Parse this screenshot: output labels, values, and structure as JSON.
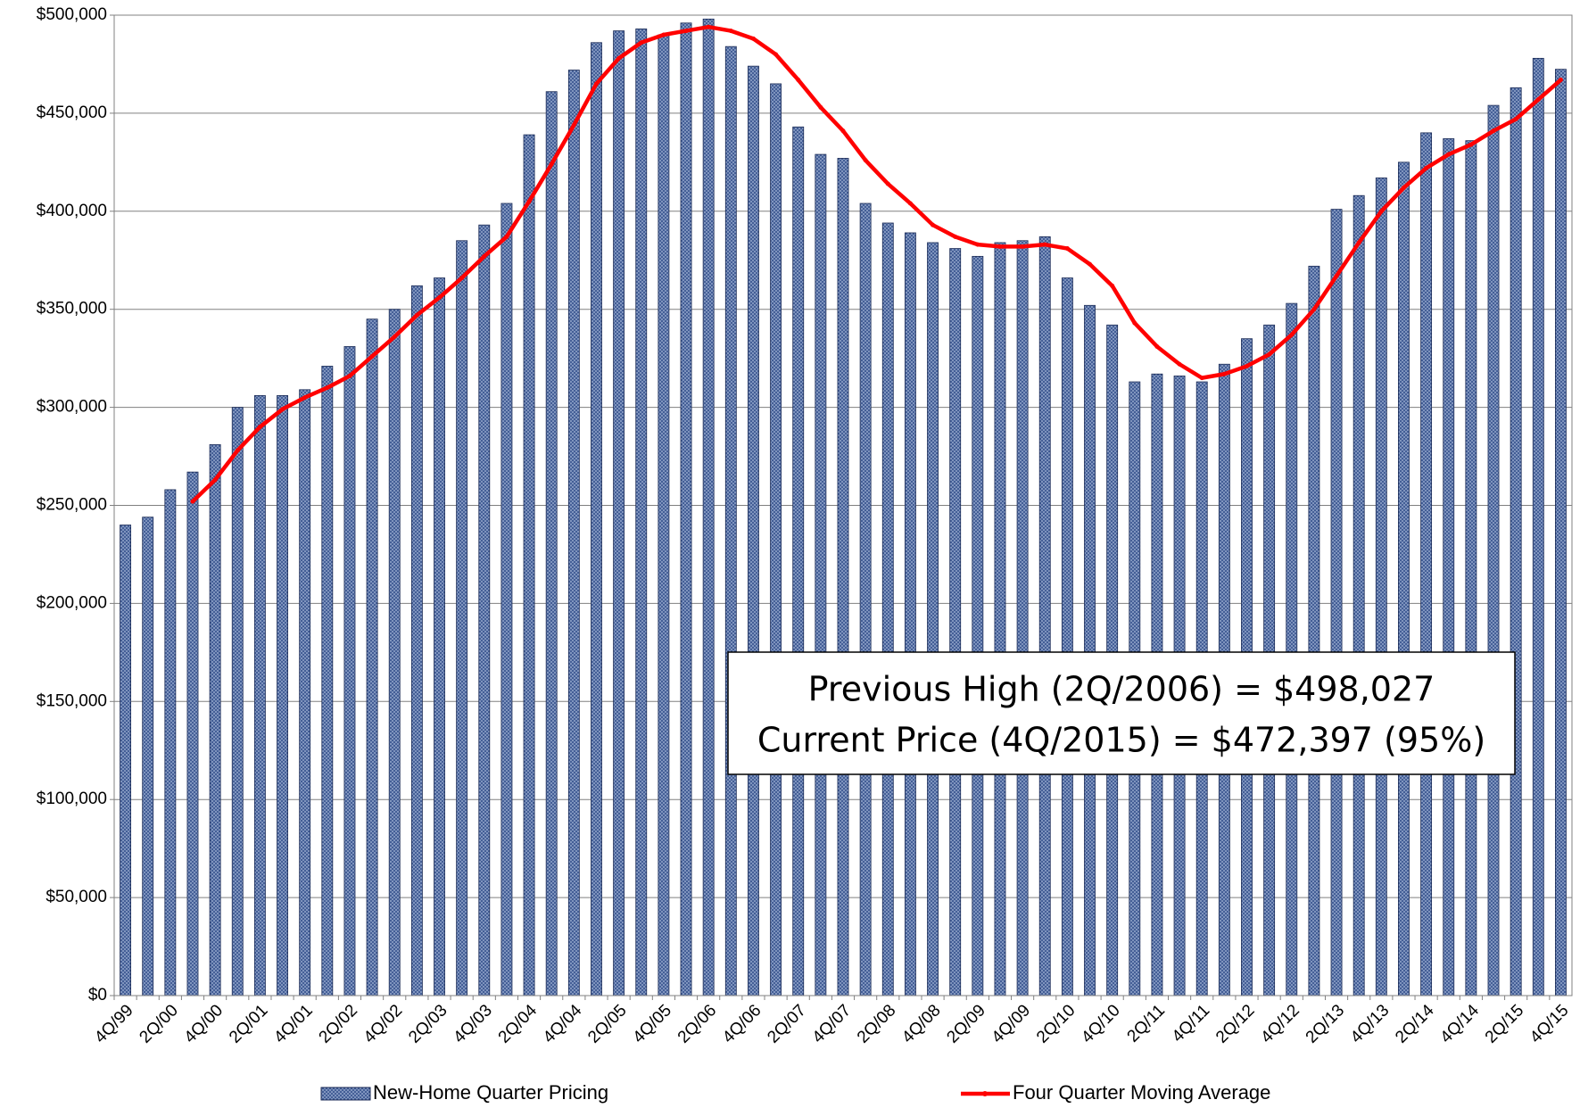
{
  "chart_data": {
    "type": "bar-line",
    "categories": [
      "4Q/99",
      null,
      "2Q/00",
      null,
      "4Q/00",
      null,
      "2Q/01",
      null,
      "4Q/01",
      null,
      "2Q/02",
      null,
      "4Q/02",
      null,
      "2Q/03",
      null,
      "4Q/03",
      null,
      "2Q/04",
      null,
      "4Q/04",
      null,
      "2Q/05",
      null,
      "4Q/05",
      null,
      "2Q/06",
      null,
      "4Q/06",
      null,
      "2Q/07",
      null,
      "4Q/07",
      null,
      "2Q/08",
      null,
      "4Q/08",
      null,
      "2Q/09",
      null,
      "4Q/09",
      null,
      "2Q/10",
      null,
      "4Q/10",
      null,
      "2Q/11",
      null,
      "4Q/11",
      null,
      "2Q/12",
      null,
      "4Q/12",
      null,
      "2Q/13",
      null,
      "4Q/13",
      null,
      "2Q/14",
      null,
      "4Q/14",
      null,
      "2Q/15",
      null,
      "4Q/15"
    ],
    "series": [
      {
        "name": "New-Home Quarter Pricing",
        "type": "bar",
        "color": "#34508c",
        "values": [
          240000,
          244000,
          258000,
          267000,
          281000,
          300000,
          306000,
          306000,
          309000,
          321000,
          331000,
          345000,
          350000,
          362000,
          366000,
          385000,
          393000,
          404000,
          439000,
          461000,
          472000,
          486000,
          492000,
          493000,
          490000,
          496000,
          498027,
          484000,
          474000,
          465000,
          443000,
          429000,
          427000,
          404000,
          394000,
          389000,
          384000,
          381000,
          377000,
          384000,
          385000,
          387000,
          366000,
          352000,
          342000,
          313000,
          317000,
          316000,
          313000,
          322000,
          335000,
          342000,
          353000,
          372000,
          401000,
          408000,
          417000,
          425000,
          440000,
          437000,
          436000,
          454000,
          463000,
          478000,
          472397
        ]
      },
      {
        "name": "Four Quarter Moving Average",
        "type": "line",
        "color": "#ff0000",
        "values": [
          null,
          null,
          null,
          252000,
          263000,
          278000,
          290000,
          299000,
          305000,
          310000,
          316000,
          326000,
          336000,
          347000,
          356000,
          366000,
          377000,
          387000,
          405000,
          424000,
          444000,
          465000,
          478000,
          486000,
          490000,
          492000,
          494000,
          492000,
          488000,
          480000,
          467000,
          453000,
          441000,
          426000,
          414000,
          404000,
          393000,
          387000,
          383000,
          382000,
          382000,
          383000,
          381000,
          373000,
          362000,
          343000,
          331000,
          322000,
          315000,
          317000,
          321000,
          327000,
          337000,
          350000,
          367000,
          384000,
          400000,
          412000,
          422000,
          429000,
          434000,
          441000,
          447000,
          457000,
          467000
        ]
      }
    ],
    "ylim": [
      0,
      500000
    ],
    "yticks": [
      {
        "value": 0,
        "label": "$0"
      },
      {
        "value": 50000,
        "label": "$50,000"
      },
      {
        "value": 100000,
        "label": "$100,000"
      },
      {
        "value": 150000,
        "label": "$150,000"
      },
      {
        "value": 200000,
        "label": "$200,000"
      },
      {
        "value": 250000,
        "label": "$250,000"
      },
      {
        "value": 300000,
        "label": "$300,000"
      },
      {
        "value": 350000,
        "label": "$350,000"
      },
      {
        "value": 400000,
        "label": "$400,000"
      },
      {
        "value": 450000,
        "label": "$450,000"
      },
      {
        "value": 500000,
        "label": "$500,000"
      }
    ],
    "grid": true,
    "legend": "bottom",
    "annotations": [
      "Previous High (2Q/2006) = $498,027",
      "Current Price (4Q/2015) = $472,397 (95%)"
    ]
  }
}
